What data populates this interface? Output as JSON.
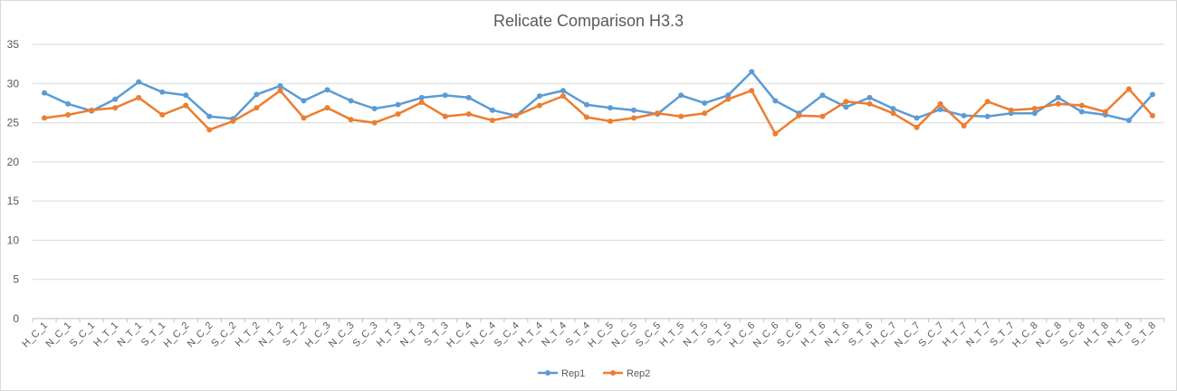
{
  "chart_data": {
    "type": "line",
    "title": "Relicate Comparison H3.3",
    "xlabel": "",
    "ylabel": "",
    "ylim": [
      0,
      35
    ],
    "yticks": [
      0,
      5,
      10,
      15,
      20,
      25,
      30,
      35
    ],
    "grid": true,
    "legend_position": "bottom",
    "categories": [
      "H_C_1",
      "N_C_1",
      "S_C_1",
      "H_T_1",
      "N_T_1",
      "S_T_1",
      "H_C_2",
      "N_C_2",
      "S_C_2",
      "H_T_2",
      "N_T_2",
      "S_T_2",
      "H_C_3",
      "N_C_3",
      "S_C_3",
      "H_T_3",
      "N_T_3",
      "S_T_3",
      "H_C_4",
      "N_C_4",
      "S_C_4",
      "H_T_4",
      "N_T_4",
      "S_T_4",
      "H_C_5",
      "N_C_5",
      "S_C_5",
      "H_T_5",
      "N_T_5",
      "S_T_5",
      "H_C_6",
      "N_C_6",
      "S_C_6",
      "H_T_6",
      "N_T_6",
      "S_T_6",
      "H_C_7",
      "N_C_7",
      "S_C_7",
      "H_T_7",
      "N_T_7",
      "S_T_7",
      "H_C_8",
      "N_C_8",
      "S_C_8",
      "H_T_8",
      "N_T_8",
      "S_T_8"
    ],
    "series": [
      {
        "name": "Rep1",
        "color": "#5b9bd5",
        "values": [
          28.8,
          27.4,
          26.5,
          28.0,
          30.2,
          28.9,
          28.5,
          25.8,
          25.5,
          28.6,
          29.7,
          27.8,
          29.2,
          27.8,
          26.8,
          27.3,
          28.2,
          28.5,
          28.2,
          26.6,
          25.9,
          28.4,
          29.1,
          27.3,
          26.9,
          26.6,
          26.1,
          28.5,
          27.5,
          28.5,
          31.5,
          27.8,
          26.2,
          28.5,
          27.0,
          28.2,
          26.8,
          25.6,
          26.7,
          25.9,
          25.8,
          26.2,
          26.2,
          28.2,
          26.4,
          26.0,
          25.3,
          28.6
        ]
      },
      {
        "name": "Rep2",
        "color": "#ed7d31",
        "values": [
          25.6,
          26.0,
          26.6,
          26.9,
          28.2,
          26.0,
          27.2,
          24.1,
          25.2,
          26.9,
          29.1,
          25.6,
          26.9,
          25.4,
          25.0,
          26.1,
          27.6,
          25.8,
          26.1,
          25.3,
          25.9,
          27.2,
          28.4,
          25.7,
          25.2,
          25.6,
          26.2,
          25.8,
          26.2,
          28.0,
          29.1,
          23.6,
          25.9,
          25.8,
          27.7,
          27.4,
          26.2,
          24.4,
          27.4,
          24.6,
          27.7,
          26.6,
          26.8,
          27.4,
          27.2,
          26.4,
          29.3,
          25.9
        ]
      }
    ]
  }
}
